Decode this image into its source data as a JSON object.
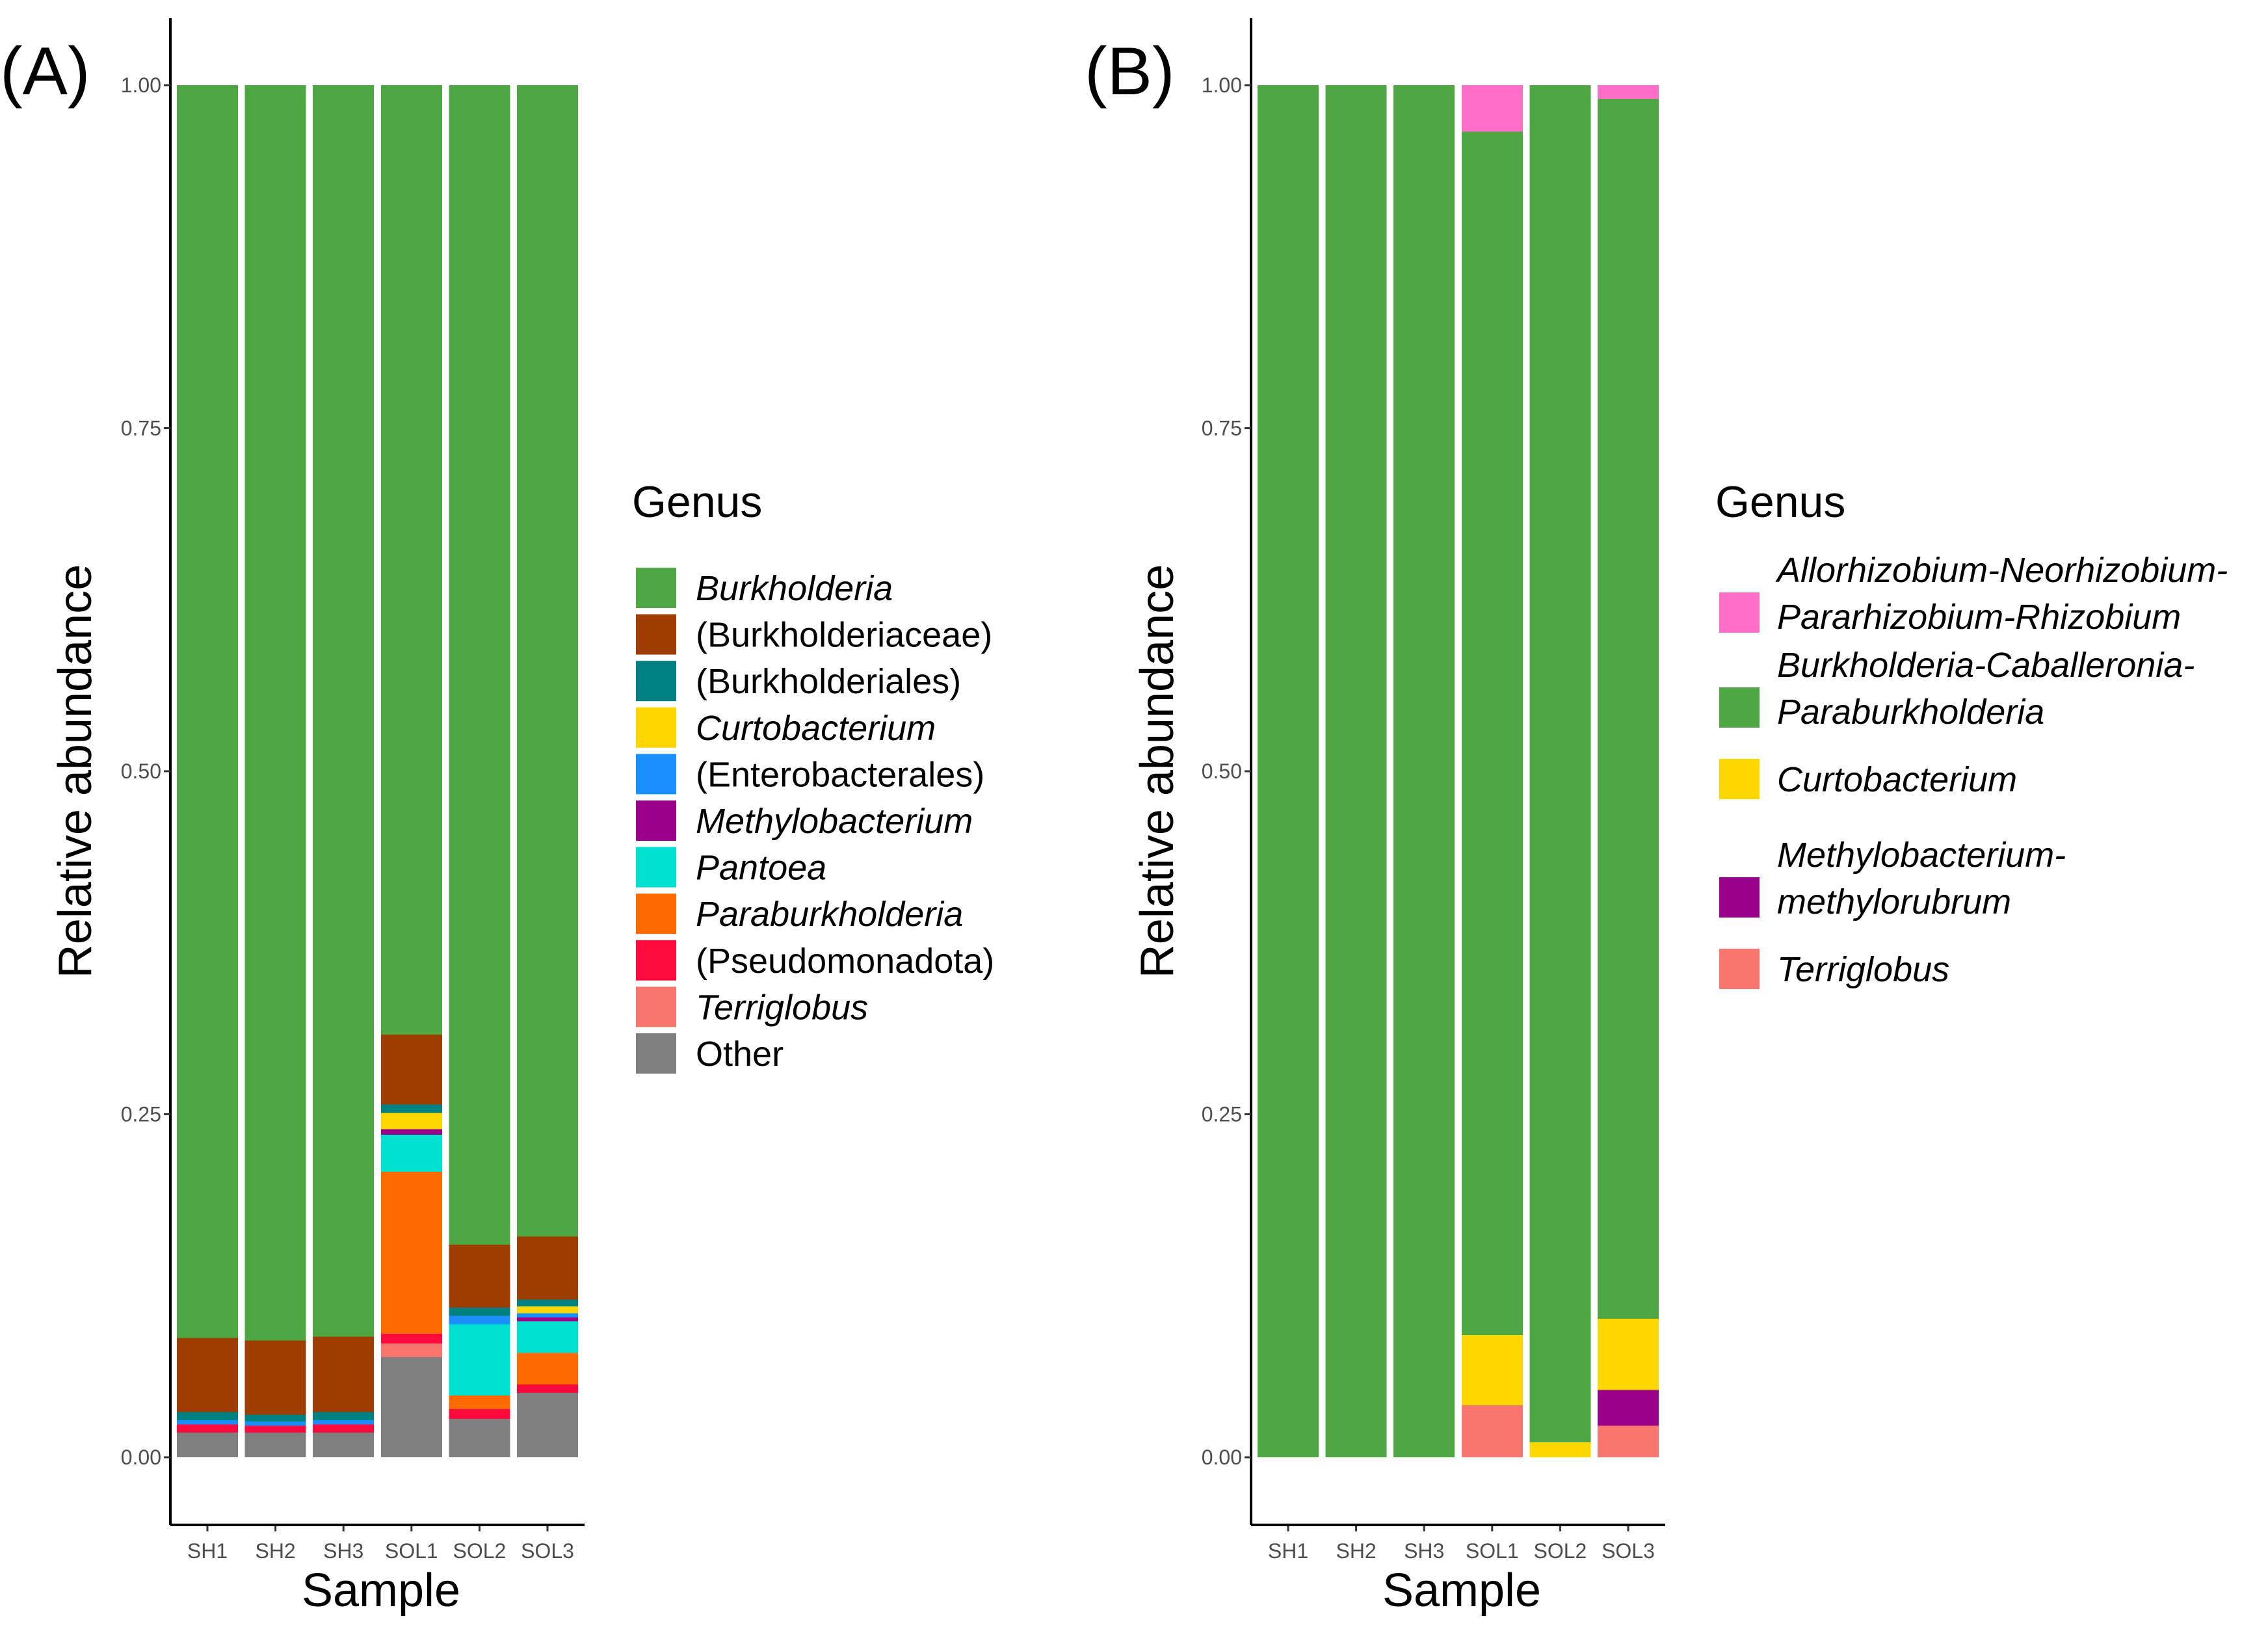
{
  "chart_data": [
    {
      "type": "bar",
      "stacked": true,
      "panel_label": "(A)",
      "xlabel": "Sample",
      "ylabel": "Relative abundance",
      "ylim": [
        0,
        1
      ],
      "yticks": [
        "0.00",
        "0.25",
        "0.50",
        "0.75",
        "1.00"
      ],
      "categories": [
        "SH1",
        "SH2",
        "SH3",
        "SOL1",
        "SOL2",
        "SOL3"
      ],
      "legend_title": "Genus",
      "legend_position": "right",
      "series": [
        {
          "name": "Other",
          "italic": false,
          "color": "#808080",
          "values": [
            0.018,
            0.018,
            0.018,
            0.073,
            0.028,
            0.047
          ]
        },
        {
          "name": "Terriglobus",
          "italic": true,
          "color": "#F8766D",
          "values": [
            0.0,
            0.0,
            0.0,
            0.01,
            0.0,
            0.0
          ]
        },
        {
          "name": "(Pseudomonadota)",
          "italic": false,
          "color": "#FF0A3C",
          "values": [
            0.006,
            0.005,
            0.006,
            0.007,
            0.007,
            0.006
          ]
        },
        {
          "name": "Paraburkholderia",
          "italic": true,
          "color": "#FF6A00",
          "values": [
            0.0,
            0.0,
            0.0,
            0.118,
            0.01,
            0.023
          ]
        },
        {
          "name": "Pantoea",
          "italic": true,
          "color": "#00E0D0",
          "values": [
            0.0,
            0.0,
            0.0,
            0.027,
            0.052,
            0.023
          ]
        },
        {
          "name": "Methylobacterium",
          "italic": true,
          "color": "#9A0089",
          "values": [
            0.0,
            0.0,
            0.0,
            0.004,
            0.0,
            0.003
          ]
        },
        {
          "name": "(Enterobacterales)",
          "italic": false,
          "color": "#1A8FFF",
          "values": [
            0.003,
            0.003,
            0.003,
            0.0,
            0.006,
            0.003
          ]
        },
        {
          "name": "Curtobacterium",
          "italic": true,
          "color": "#FFD700",
          "values": [
            0.0,
            0.0,
            0.0,
            0.012,
            0.0,
            0.005
          ]
        },
        {
          "name": "(Burkholderiales)",
          "italic": false,
          "color": "#008080",
          "values": [
            0.006,
            0.005,
            0.006,
            0.006,
            0.006,
            0.005
          ]
        },
        {
          "name": "(Burkholderiaceae)",
          "italic": false,
          "color": "#9E3D00",
          "values": [
            0.054,
            0.054,
            0.055,
            0.051,
            0.046,
            0.046
          ]
        },
        {
          "name": "Burkholderia",
          "italic": true,
          "color": "#4EA743",
          "values": [
            0.913,
            0.915,
            0.912,
            0.692,
            0.845,
            0.839
          ]
        }
      ],
      "legend_order": [
        "Burkholderia",
        "(Burkholderiaceae)",
        "(Burkholderiales)",
        "Curtobacterium",
        "(Enterobacterales)",
        "Methylobacterium",
        "Pantoea",
        "Paraburkholderia",
        "(Pseudomonadota)",
        "Terriglobus",
        "Other"
      ]
    },
    {
      "type": "bar",
      "stacked": true,
      "panel_label": "(B)",
      "xlabel": "Sample",
      "ylabel": "Relative abundance",
      "ylim": [
        0,
        1
      ],
      "yticks": [
        "0.00",
        "0.25",
        "0.50",
        "0.75",
        "1.00"
      ],
      "categories": [
        "SH1",
        "SH2",
        "SH3",
        "SOL1",
        "SOL2",
        "SOL3"
      ],
      "legend_title": "Genus",
      "legend_position": "right",
      "series": [
        {
          "name": "Terriglobus",
          "lines": [
            "Terriglobus"
          ],
          "italic": true,
          "color": "#F8766D",
          "values": [
            0.0,
            0.0,
            0.0,
            0.038,
            0.0,
            0.023
          ]
        },
        {
          "name": "Methylobacterium-methylorubrum",
          "lines": [
            "Methylobacterium-",
            "methylorubrum"
          ],
          "italic": true,
          "color": "#9A0089",
          "values": [
            0.0,
            0.0,
            0.0,
            0.0,
            0.0,
            0.026
          ]
        },
        {
          "name": "Curtobacterium",
          "lines": [
            "Curtobacterium"
          ],
          "italic": true,
          "color": "#FFD700",
          "values": [
            0.0,
            0.0,
            0.0,
            0.051,
            0.011,
            0.052
          ]
        },
        {
          "name": "Burkholderia-Caballeronia-Paraburkholderia",
          "lines": [
            "Burkholderia-Caballeronia-",
            "Paraburkholderia"
          ],
          "italic": true,
          "color": "#4EA743",
          "values": [
            1.0,
            1.0,
            1.0,
            0.877,
            0.989,
            0.889
          ]
        },
        {
          "name": "Allorhizobium-Neorhizobium-Pararhizobium-Rhizobium",
          "lines": [
            "Allorhizobium-Neorhizobium-",
            "Pararhizobium-Rhizobium"
          ],
          "italic": true,
          "color": "#FF6EC7",
          "values": [
            0.0,
            0.0,
            0.0,
            0.034,
            0.0,
            0.01
          ]
        }
      ],
      "legend_order": [
        "Allorhizobium-Neorhizobium-Pararhizobium-Rhizobium",
        "Burkholderia-Caballeronia-Paraburkholderia",
        "Curtobacterium",
        "Methylobacterium-methylorubrum",
        "Terriglobus"
      ]
    }
  ]
}
